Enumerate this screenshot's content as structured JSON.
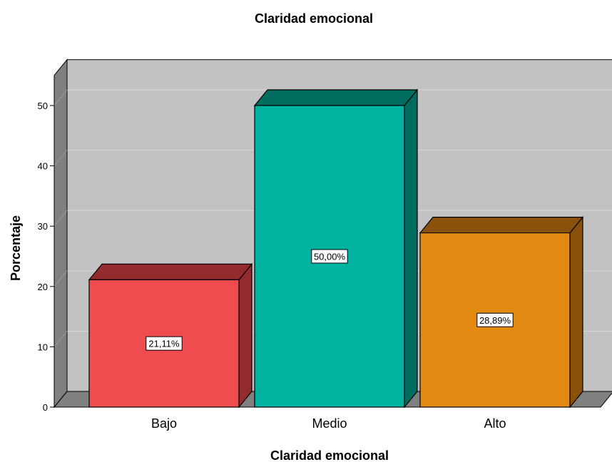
{
  "chart_data": {
    "type": "bar",
    "title": "Claridad emocional",
    "xlabel": "Claridad emocional",
    "ylabel": "Porcentaje",
    "categories": [
      "Bajo",
      "Medio",
      "Alto"
    ],
    "values": [
      21.11,
      50.0,
      28.89
    ],
    "data_labels": [
      "21,11%",
      "50,00%",
      "28,89%"
    ],
    "ylim": [
      0,
      50
    ],
    "yticks": [
      "0",
      "10",
      "20",
      "30",
      "40",
      "50"
    ],
    "grid": true,
    "three_d": true,
    "colors": {
      "bars": [
        "#ee4c4f",
        "#00b3a0",
        "#e38a13"
      ],
      "bar_tops": [
        "#932b2e",
        "#006b5f",
        "#8a510b"
      ],
      "bar_sides": [
        "#932b2e",
        "#006b5f",
        "#8a510b"
      ],
      "plot_background": "#c2c2c2",
      "wall": "#808080",
      "gridline": "#d8d8d8"
    }
  }
}
